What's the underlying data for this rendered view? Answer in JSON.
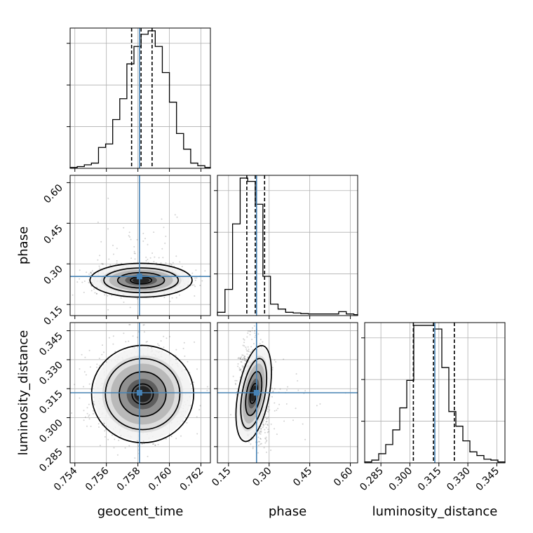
{
  "chart_data": {
    "type": "corner",
    "parameters": [
      "geocent_time",
      "phase",
      "luminosity_distance"
    ],
    "axis_labels": {
      "geocent_time": "geocent_time",
      "phase": "phase",
      "luminosity_distance": "luminosity_distance"
    },
    "ranges": {
      "geocent_time": [
        0.7537,
        0.7626
      ],
      "phase": [
        0.109,
        0.627
      ],
      "luminosity_distance": [
        0.2766,
        0.3492
      ]
    },
    "ticks": {
      "geocent_time": [
        "0.754",
        "0.756",
        "0.758",
        "0.760",
        "0.762"
      ],
      "phase": [
        "0.15",
        "0.30",
        "0.45",
        "0.60"
      ],
      "luminosity_distance": [
        "0.285",
        "0.300",
        "0.315",
        "0.330",
        "0.345"
      ]
    },
    "truths": {
      "geocent_time": 0.7581,
      "phase": 0.2535,
      "luminosity_distance": 0.3129
    },
    "quantiles": {
      "geocent_time": [
        0.7576,
        0.7582,
        0.7589
      ],
      "phase": [
        0.2176,
        0.2489,
        0.2832
      ],
      "luminosity_distance": [
        0.3018,
        0.3122,
        0.323
      ]
    },
    "histograms": {
      "geocent_time": {
        "bin_edges": [
          0.7537,
          0.75415,
          0.7546,
          0.75505,
          0.7555,
          0.75595,
          0.7564,
          0.75685,
          0.7573,
          0.75775,
          0.7582,
          0.75865,
          0.7591,
          0.75955,
          0.76,
          0.76045,
          0.7609,
          0.76135,
          0.7618,
          0.76225,
          0.7626
        ],
        "counts": [
          0.5,
          1,
          2,
          3,
          12,
          14,
          28,
          40,
          60,
          70,
          77,
          79,
          70,
          55,
          38,
          20,
          11,
          3,
          1.5,
          0.5
        ]
      },
      "phase": {
        "bin_edges": [
          0.109,
          0.137,
          0.165,
          0.193,
          0.221,
          0.249,
          0.277,
          0.305,
          0.333,
          0.361,
          0.389,
          0.417,
          0.445,
          0.473,
          0.501,
          0.529,
          0.557,
          0.585,
          0.613,
          0.627
        ],
        "counts": [
          1,
          8,
          28,
          42,
          41,
          34,
          12,
          3.5,
          2,
          1,
          0.8,
          0.6,
          0.5,
          0.5,
          0.5,
          0.5,
          1.2,
          0.5,
          0.3
        ]
      },
      "luminosity_distance": {
        "bin_edges": [
          0.2766,
          0.28023,
          0.28386,
          0.28749,
          0.29112,
          0.29475,
          0.29838,
          0.30201,
          0.30564,
          0.30927,
          0.3129,
          0.31653,
          0.32016,
          0.32379,
          0.32742,
          0.33105,
          0.33468,
          0.33831,
          0.34194,
          0.34557,
          0.3492
        ],
        "counts": [
          0.5,
          1.5,
          5,
          10,
          18,
          30,
          45,
          75,
          75,
          75,
          73,
          52,
          28,
          20,
          12,
          6,
          4,
          2,
          1.5,
          0.5
        ]
      }
    },
    "pairs": [
      {
        "x": "geocent_time",
        "y": "phase",
        "mean": [
          0.7582,
          0.2395
        ],
        "sd": [
          0.00135,
          0.026
        ],
        "corr": 0.0
      },
      {
        "x": "geocent_time",
        "y": "luminosity_distance",
        "mean": [
          0.7583,
          0.3122
        ],
        "sd": [
          0.00135,
          0.0105
        ],
        "corr": 0.0
      },
      {
        "x": "phase",
        "y": "luminosity_distance",
        "mean": [
          0.243,
          0.3125
        ],
        "sd": [
          0.024,
          0.0105
        ],
        "corr": -0.3
      }
    ],
    "colors": {
      "truth": "#4682b4",
      "hist": "#000000",
      "grid": "#b0b0b0"
    }
  }
}
